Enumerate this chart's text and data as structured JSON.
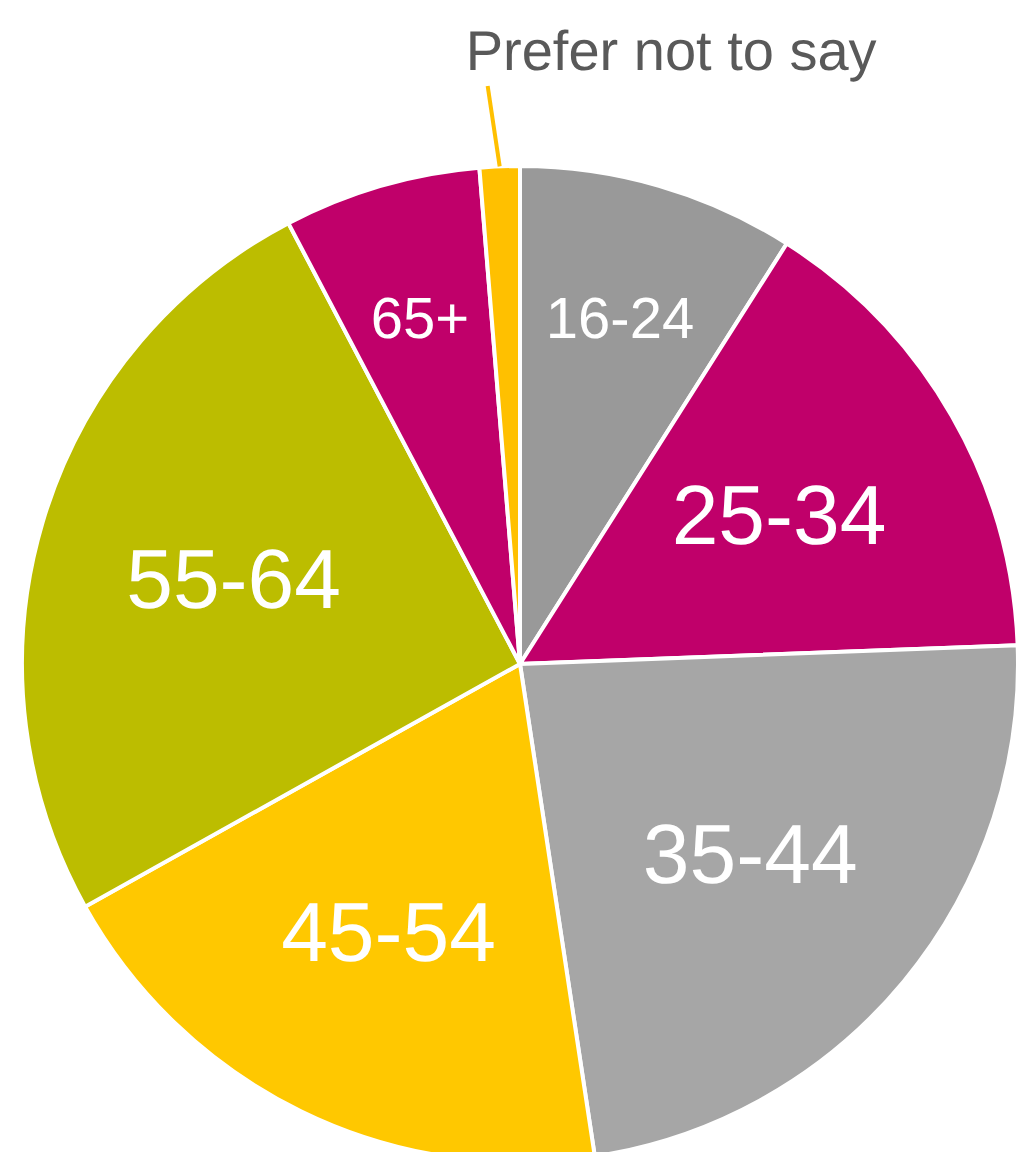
{
  "chart_data": {
    "type": "pie",
    "categories": [
      "16-24",
      "25-34",
      "35-44",
      "45-54",
      "55-64",
      "65+",
      "Prefer not to say"
    ],
    "values": [
      9,
      15.4,
      23.2,
      19.3,
      25.4,
      6.4,
      1.3
    ],
    "colors": [
      "#999999",
      "#c0006a",
      "#a6a6a6",
      "#ffc800",
      "#bcbd00",
      "#c0006a",
      "#ffc000"
    ]
  }
}
